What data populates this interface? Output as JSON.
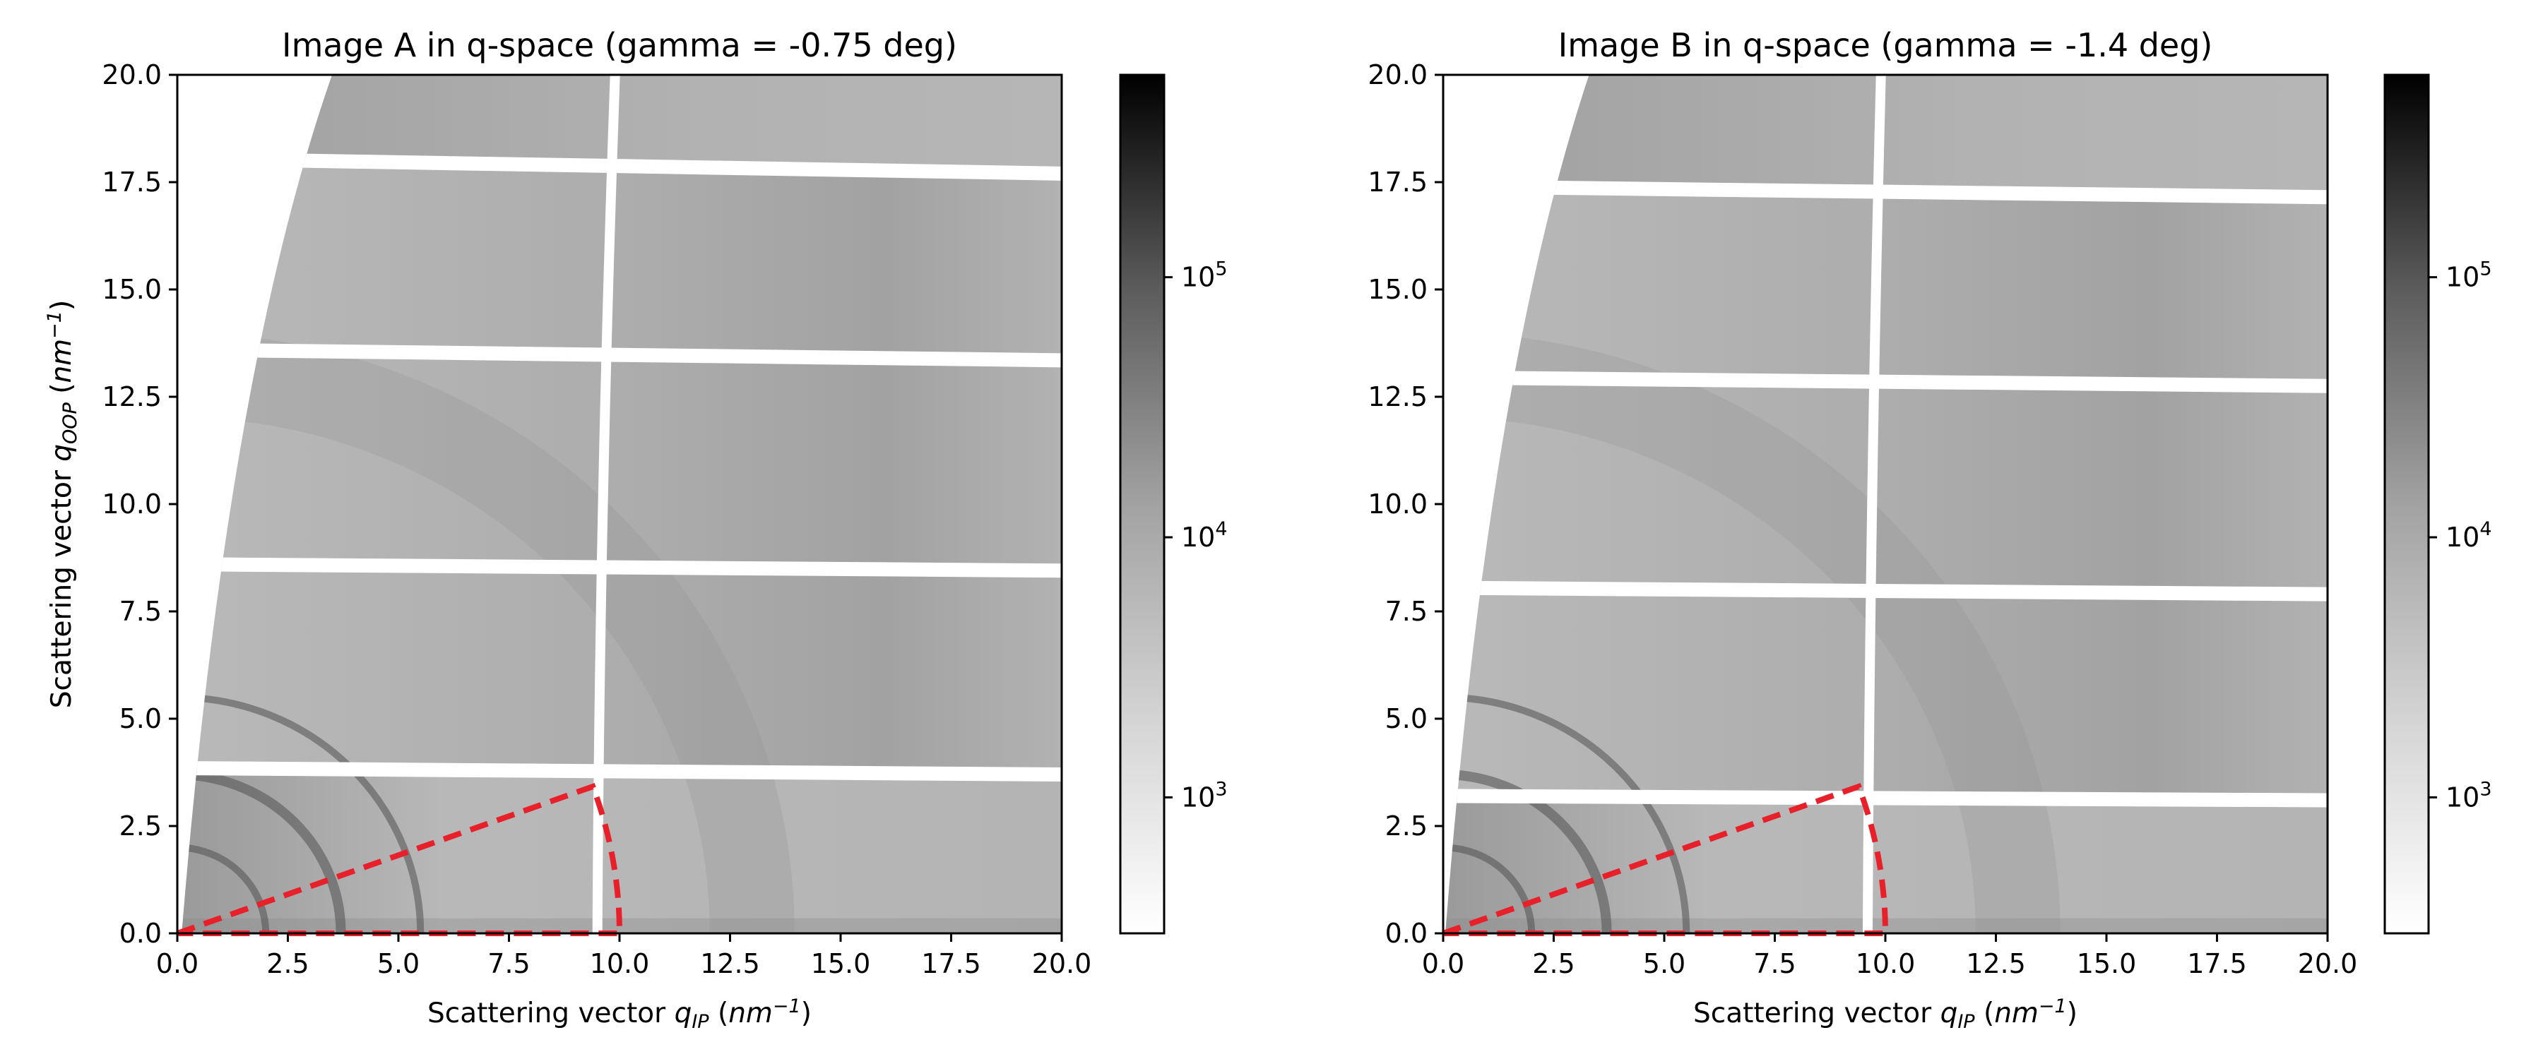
{
  "chart_data": [
    {
      "type": "heatmap",
      "title": "Image A in q-space (gamma = -0.75 deg)",
      "xlabel": {
        "prefix": "Scattering vector ",
        "symbol": "q",
        "sub": "IP",
        "unit_open": " (",
        "unit": "nm",
        "sup": "−1",
        "unit_close": ")"
      },
      "ylabel": {
        "prefix": "Scattering vector ",
        "symbol": "q",
        "sub": "OOP",
        "unit_open": " (",
        "unit": "nm",
        "sup": "−1",
        "unit_close": ")"
      },
      "xlim": [
        0,
        20
      ],
      "ylim": [
        0,
        20
      ],
      "xticks": [
        "0.0",
        "2.5",
        "5.0",
        "7.5",
        "10.0",
        "12.5",
        "15.0",
        "17.5",
        "20.0"
      ],
      "yticks": [
        "0.0",
        "2.5",
        "5.0",
        "7.5",
        "10.0",
        "12.5",
        "15.0",
        "17.5",
        "20.0"
      ],
      "colorbar": {
        "scale": "log",
        "cmap": "Greys",
        "min": 300,
        "max": 600000,
        "ticks": [
          1000,
          10000,
          100000
        ],
        "tick_labels": [
          {
            "base": "10",
            "exp": "3"
          },
          {
            "base": "10",
            "exp": "4"
          },
          {
            "base": "10",
            "exp": "5"
          }
        ]
      },
      "gaps": {
        "horizontal": [
          {
            "y_left": 3.85,
            "y_right": 3.7
          },
          {
            "y_left": 8.6,
            "y_right": 8.45
          },
          {
            "y_left": 13.6,
            "y_right": 13.35
          },
          {
            "y_left": 18.05,
            "y_right": 17.7
          }
        ],
        "vertical": {
          "x_bottom": 9.5,
          "x_top": 9.9
        }
      },
      "detector_edge": {
        "x_at_y0": 0.1,
        "x_at_y20": 3.5
      },
      "rings": [
        2.0,
        3.7,
        5.5
      ],
      "overlay": {
        "color": "#e8202a",
        "style": "dashed",
        "shape": "sector",
        "q_max": 10.0,
        "angle_min_deg": 0,
        "angle_max_deg": 20
      }
    },
    {
      "type": "heatmap",
      "title": "Image B in q-space (gamma = -1.4 deg)",
      "xlabel": {
        "prefix": "Scattering vector ",
        "symbol": "q",
        "sub": "IP",
        "unit_open": " (",
        "unit": "nm",
        "sup": "−1",
        "unit_close": ")"
      },
      "ylabel": {
        "prefix": "Scattering vector ",
        "symbol": "q",
        "sub": "OOP",
        "unit_open": " (",
        "unit": "nm",
        "sup": "−1",
        "unit_close": ")"
      },
      "xlim": [
        0,
        20
      ],
      "ylim": [
        0,
        20
      ],
      "xticks": [
        "0.0",
        "2.5",
        "5.0",
        "7.5",
        "10.0",
        "12.5",
        "15.0",
        "17.5",
        "20.0"
      ],
      "yticks": [
        "0.0",
        "2.5",
        "5.0",
        "7.5",
        "10.0",
        "12.5",
        "15.0",
        "17.5",
        "20.0"
      ],
      "colorbar": {
        "scale": "log",
        "cmap": "Greys",
        "min": 300,
        "max": 600000,
        "ticks": [
          1000,
          10000,
          100000
        ],
        "tick_labels": [
          {
            "base": "10",
            "exp": "3"
          },
          {
            "base": "10",
            "exp": "4"
          },
          {
            "base": "10",
            "exp": "5"
          }
        ]
      },
      "gaps": {
        "horizontal": [
          {
            "y_left": 3.2,
            "y_right": 3.1
          },
          {
            "y_left": 8.05,
            "y_right": 7.9
          },
          {
            "y_left": 12.95,
            "y_right": 12.75
          },
          {
            "y_left": 17.4,
            "y_right": 17.15
          }
        ],
        "vertical": {
          "x_bottom": 9.6,
          "x_top": 9.9
        }
      },
      "detector_edge": {
        "x_at_y0": 0.05,
        "x_at_y20": 3.3
      },
      "rings": [
        2.0,
        3.7,
        5.5
      ],
      "overlay": {
        "color": "#e8202a",
        "style": "dashed",
        "shape": "sector",
        "q_max": 10.0,
        "angle_min_deg": 0,
        "angle_max_deg": 20
      }
    }
  ]
}
